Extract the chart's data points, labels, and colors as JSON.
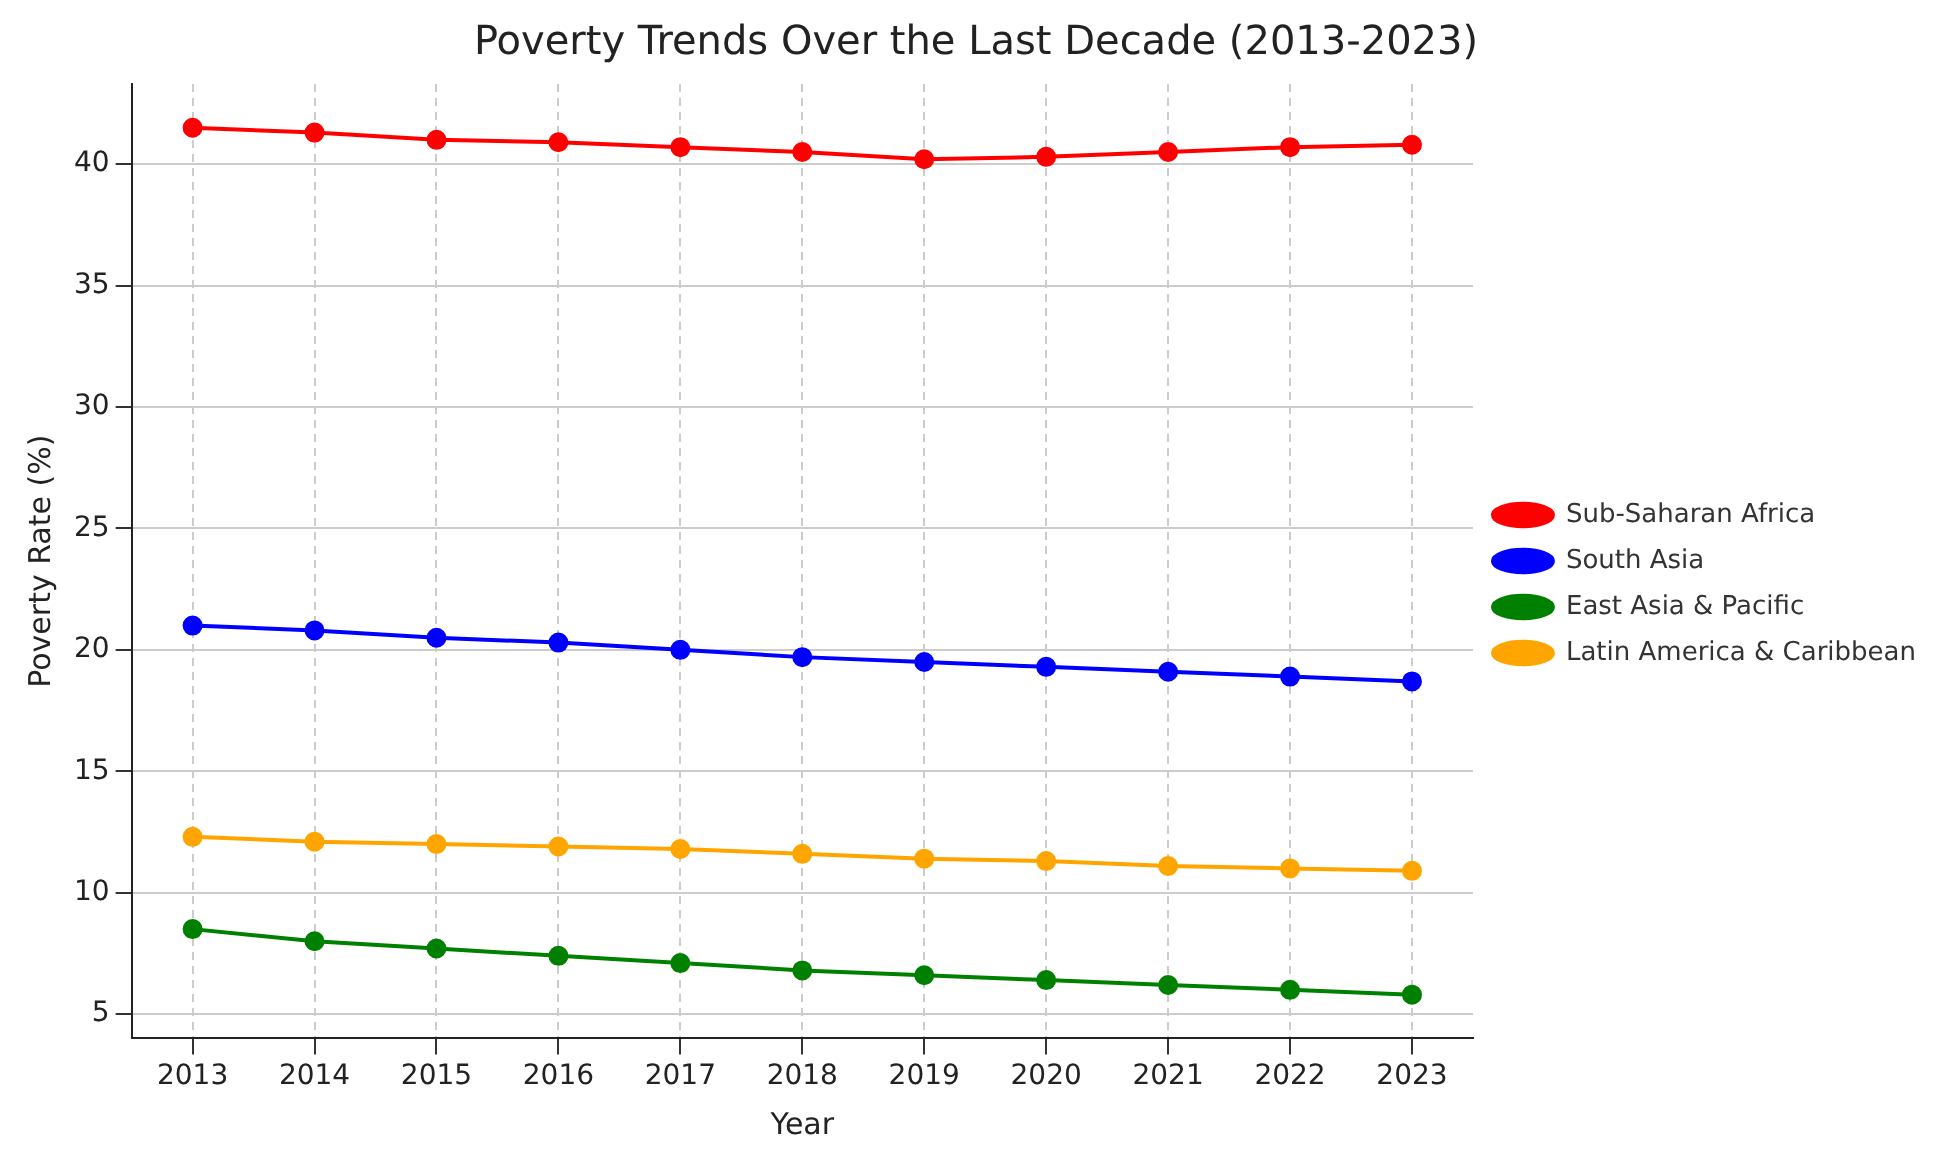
{
  "chart_data": {
    "type": "line",
    "title": "Poverty Trends Over the Last Decade (2013-2023)",
    "xlabel": "Year",
    "ylabel": "Poverty Rate (%)",
    "x": [
      2013,
      2014,
      2015,
      2016,
      2017,
      2018,
      2019,
      2020,
      2021,
      2022,
      2023
    ],
    "series": [
      {
        "name": "Sub-Saharan Africa",
        "color": "#ff0000",
        "values": [
          41.5,
          41.3,
          41.0,
          40.9,
          40.7,
          40.5,
          40.2,
          40.3,
          40.5,
          40.7,
          40.8
        ]
      },
      {
        "name": "South Asia",
        "color": "#0000ff",
        "values": [
          21.0,
          20.8,
          20.5,
          20.3,
          20.0,
          19.7,
          19.5,
          19.3,
          19.1,
          18.9,
          18.7
        ]
      },
      {
        "name": "East Asia & Pacific",
        "color": "#008000",
        "values": [
          8.5,
          8.0,
          7.7,
          7.4,
          7.1,
          6.8,
          6.6,
          6.4,
          6.2,
          6.0,
          5.8
        ]
      },
      {
        "name": "Latin America & Caribbean",
        "color": "#ffa500",
        "values": [
          12.3,
          12.1,
          12.0,
          11.9,
          11.8,
          11.6,
          11.4,
          11.3,
          11.1,
          11.0,
          10.9
        ]
      }
    ],
    "xlim": [
      2012.5,
      2023.5
    ],
    "xticks": [
      2013,
      2014,
      2015,
      2016,
      2017,
      2018,
      2019,
      2020,
      2021,
      2022,
      2023
    ],
    "ylim": [
      4,
      43.3
    ],
    "yticks": [
      5,
      10,
      15,
      20,
      25,
      30,
      35,
      40
    ],
    "grid": true,
    "legend": "right",
    "marker": "circle",
    "line_style": "solid"
  }
}
